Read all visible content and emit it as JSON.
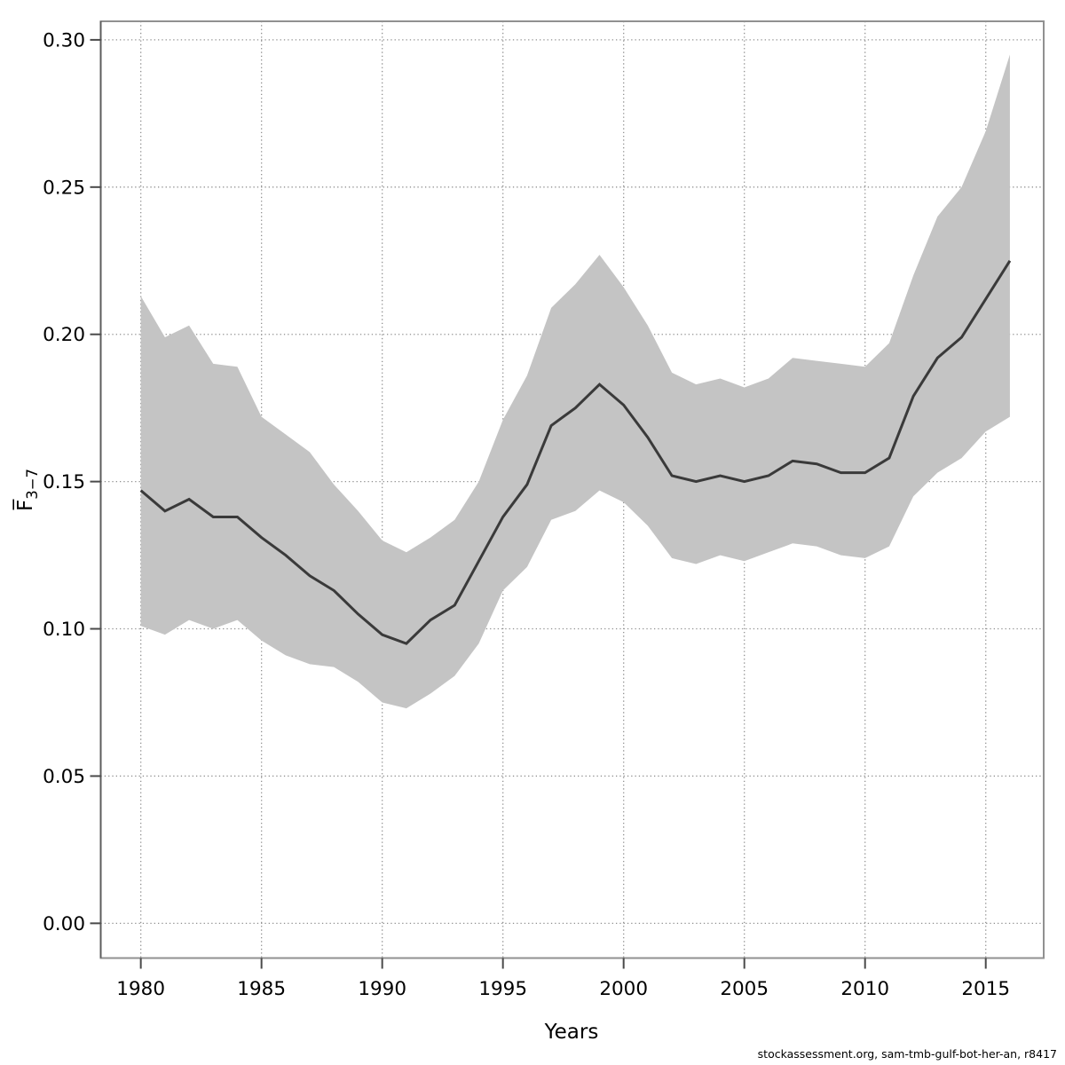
{
  "chart_data": {
    "type": "line",
    "title": "",
    "xlabel": "Years",
    "ylabel": "F̅3−7",
    "ylabel_base": "F̅",
    "ylabel_sub": "3−7",
    "footer": "stockassessment.org, sam-tmb-gulf-bot-her-an, r8417",
    "x": [
      1980,
      1981,
      1982,
      1983,
      1984,
      1985,
      1986,
      1987,
      1988,
      1989,
      1990,
      1991,
      1992,
      1993,
      1994,
      1995,
      1996,
      1997,
      1998,
      1999,
      2000,
      2001,
      2002,
      2003,
      2004,
      2005,
      2006,
      2007,
      2008,
      2009,
      2010,
      2011,
      2012,
      2013,
      2014,
      2015,
      2016
    ],
    "series": [
      {
        "name": "mean_F",
        "values": [
          0.147,
          0.14,
          0.144,
          0.138,
          0.138,
          0.131,
          0.125,
          0.118,
          0.113,
          0.105,
          0.098,
          0.095,
          0.103,
          0.108,
          0.123,
          0.138,
          0.149,
          0.169,
          0.175,
          0.183,
          0.176,
          0.165,
          0.152,
          0.15,
          0.152,
          0.15,
          0.152,
          0.157,
          0.156,
          0.153,
          0.153,
          0.158,
          0.179,
          0.192,
          0.199,
          0.212,
          0.225
        ]
      },
      {
        "name": "ci_lower",
        "values": [
          0.101,
          0.098,
          0.103,
          0.1,
          0.103,
          0.096,
          0.091,
          0.088,
          0.087,
          0.082,
          0.075,
          0.073,
          0.078,
          0.084,
          0.095,
          0.113,
          0.121,
          0.137,
          0.14,
          0.147,
          0.143,
          0.135,
          0.124,
          0.122,
          0.125,
          0.123,
          0.126,
          0.129,
          0.128,
          0.125,
          0.124,
          0.128,
          0.145,
          0.153,
          0.158,
          0.167,
          0.172
        ]
      },
      {
        "name": "ci_upper",
        "values": [
          0.213,
          0.199,
          0.203,
          0.19,
          0.189,
          0.172,
          0.166,
          0.16,
          0.149,
          0.14,
          0.13,
          0.126,
          0.131,
          0.137,
          0.15,
          0.171,
          0.186,
          0.209,
          0.217,
          0.227,
          0.216,
          0.203,
          0.187,
          0.183,
          0.185,
          0.182,
          0.185,
          0.192,
          0.191,
          0.19,
          0.189,
          0.197,
          0.22,
          0.24,
          0.25,
          0.269,
          0.295
        ]
      }
    ],
    "xticks": [
      1980,
      1985,
      1990,
      1995,
      2000,
      2005,
      2010,
      2015
    ],
    "yticks": [
      0.0,
      0.05,
      0.1,
      0.15,
      0.2,
      0.25,
      0.3
    ],
    "ytick_labels": [
      "0.00",
      "0.05",
      "0.10",
      "0.15",
      "0.20",
      "0.25",
      "0.30"
    ],
    "xlim": [
      1978.34,
      2017.4
    ],
    "ylim": [
      -0.0118,
      0.3063
    ],
    "grid": true,
    "legend_position": "none",
    "colors": {
      "band": "#c4c4c4",
      "line": "#3a3a3a",
      "grid": "#909090",
      "box": "#919191",
      "axis": "#4a4a4a",
      "background": "#ffffff"
    }
  }
}
